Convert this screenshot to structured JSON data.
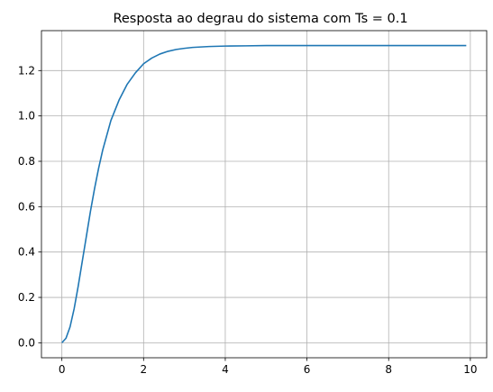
{
  "chart_data": {
    "type": "line",
    "title": "Resposta ao degrau do sistema com Ts = 0.1",
    "xlabel": "",
    "ylabel": "",
    "xlim": [
      -0.5,
      10.4
    ],
    "ylim": [
      -0.066,
      1.376
    ],
    "x_ticks": [
      0,
      2,
      4,
      6,
      8,
      10
    ],
    "y_ticks": [
      0.0,
      0.2,
      0.4,
      0.6,
      0.8,
      1.0,
      1.2
    ],
    "x_tick_labels": [
      "0",
      "2",
      "4",
      "6",
      "8",
      "10"
    ],
    "y_tick_labels": [
      "0.0",
      "0.2",
      "0.4",
      "0.6",
      "0.8",
      "1.0",
      "1.2"
    ],
    "grid": true,
    "legend": "none",
    "series": [
      {
        "color": "#1f77b4",
        "x": [
          0,
          0.1,
          0.2,
          0.3,
          0.4,
          0.5,
          0.6,
          0.7,
          0.8,
          0.9,
          1.0,
          1.2,
          1.4,
          1.6,
          1.8,
          2.0,
          2.2,
          2.4,
          2.6,
          2.8,
          3.0,
          3.2,
          3.4,
          3.6,
          3.8,
          4.0,
          4.5,
          5.0,
          5.5,
          6.0,
          7.0,
          8.0,
          9.0,
          9.9
        ],
        "y": [
          0.0,
          0.02,
          0.07,
          0.15,
          0.25,
          0.36,
          0.47,
          0.58,
          0.68,
          0.77,
          0.85,
          0.98,
          1.07,
          1.14,
          1.19,
          1.23,
          1.255,
          1.273,
          1.285,
          1.293,
          1.298,
          1.302,
          1.304,
          1.306,
          1.307,
          1.308,
          1.309,
          1.31,
          1.31,
          1.31,
          1.31,
          1.31,
          1.31,
          1.31
        ]
      }
    ]
  }
}
